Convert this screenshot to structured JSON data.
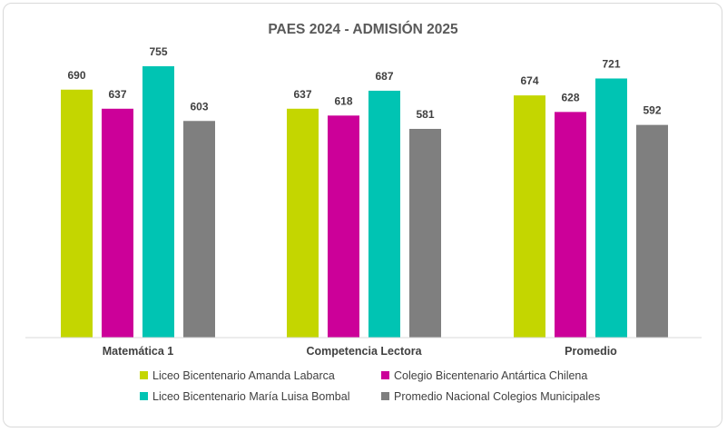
{
  "chart_data": {
    "type": "bar",
    "title": "PAES 2024 - ADMISIÓN 2025",
    "categories": [
      "Matemática 1",
      "Competencia Lectora",
      "Promedio"
    ],
    "series": [
      {
        "name": "Liceo Bicentenario Amanda Labarca",
        "color": "#c4d600",
        "values": [
          690,
          637,
          674
        ]
      },
      {
        "name": "Colegio Bicentenario Antártica Chilena",
        "color": "#cc0099",
        "values": [
          637,
          618,
          628
        ]
      },
      {
        "name": "Liceo Bicentenario María Luisa Bombal",
        "color": "#00c4b3",
        "values": [
          755,
          687,
          721
        ]
      },
      {
        "name": "Promedio Nacional Colegios Municipales",
        "color": "#7f7f7f",
        "values": [
          603,
          581,
          592
        ]
      }
    ],
    "data_labels": true,
    "ylim": [
      0,
      800
    ],
    "grid": false,
    "legend": "bottom",
    "xlabel": "",
    "ylabel": ""
  }
}
